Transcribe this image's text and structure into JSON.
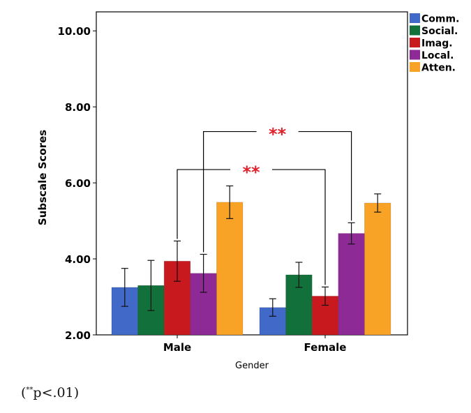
{
  "chart_data": {
    "type": "bar",
    "xlabel": "Gender",
    "ylabel": "Subscale Scores",
    "ylim": [
      2.0,
      10.5
    ],
    "yticks": [
      "2.00",
      "4.00",
      "6.00",
      "8.00",
      "10.00"
    ],
    "ytick_values": [
      2,
      4,
      6,
      8,
      10
    ],
    "categories": [
      "Male",
      "Female"
    ],
    "series": [
      {
        "name": "Comm.",
        "color": "#4169C8",
        "values": [
          3.25,
          2.72
        ],
        "err": [
          0.5,
          0.23
        ]
      },
      {
        "name": "Social.",
        "color": "#12703A",
        "values": [
          3.3,
          3.58
        ],
        "err": [
          0.66,
          0.33
        ]
      },
      {
        "name": "Imag.",
        "color": "#C8191E",
        "values": [
          3.94,
          3.02
        ],
        "err": [
          0.53,
          0.24
        ]
      },
      {
        "name": "Local.",
        "color": "#8E2A96",
        "values": [
          3.62,
          4.67
        ],
        "err": [
          0.5,
          0.28
        ]
      },
      {
        "name": "Atten.",
        "color": "#F9A326",
        "values": [
          5.49,
          5.47
        ],
        "err": [
          0.43,
          0.24
        ]
      }
    ],
    "legend_position": "right-top",
    "annotations": [
      {
        "text": "**",
        "from": {
          "category": "Male",
          "series": "Local."
        },
        "to": {
          "category": "Female",
          "series": "Local."
        },
        "bracket_y": 7.35
      },
      {
        "text": "**",
        "from": {
          "category": "Male",
          "series": "Imag."
        },
        "to": {
          "category": "Female",
          "series": "Imag."
        },
        "bracket_y": 6.35
      }
    ]
  },
  "footnote": {
    "open": "(",
    "star": "**",
    "text": "p<.01)"
  }
}
